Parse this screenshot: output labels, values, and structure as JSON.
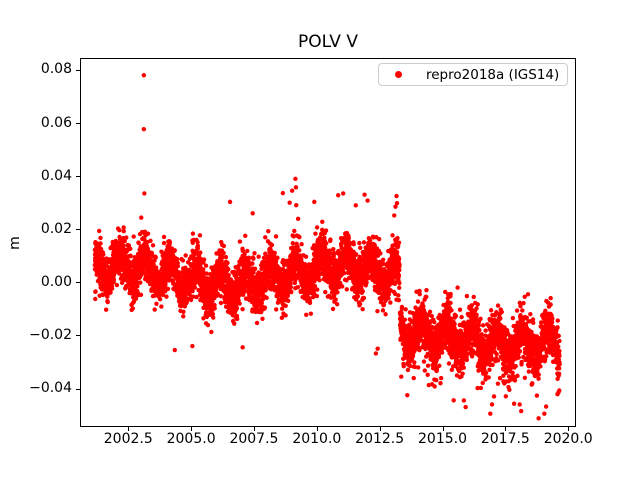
{
  "chart_data": {
    "type": "scatter",
    "title": "POLV V",
    "xlabel": "",
    "ylabel": "m",
    "legend": {
      "location": "upper right",
      "entries": [
        {
          "label": "repro2018a (IGS14)",
          "color": "#ff0000",
          "marker": "circle"
        }
      ]
    },
    "axis": {
      "xlim": [
        2000.58,
        2020.31
      ],
      "ylim": [
        -0.0545,
        0.0845
      ],
      "xticks": [
        2002.5,
        2005.0,
        2007.5,
        2010.0,
        2012.5,
        2015.0,
        2017.5,
        2020.0
      ],
      "xtick_labels": [
        "2002.5",
        "2005.0",
        "2007.5",
        "2010.0",
        "2012.5",
        "2015.0",
        "2017.5",
        "2020.0"
      ],
      "yticks": [
        -0.04,
        -0.02,
        0.0,
        0.02,
        0.04,
        0.06,
        0.08
      ],
      "ytick_labels": [
        "−0.04",
        "−0.02",
        "0.00",
        "0.02",
        "0.04",
        "0.06",
        "0.08"
      ],
      "grid": false,
      "spine_color": "#000000"
    },
    "marker": {
      "color": "#ff0000",
      "radius_px": 2.2
    },
    "description": "Daily GNSS vertical position time series for station POLV (repro2018a, IGS14); dense red scatter band near 0.00 m from 2001.2 to 2013.3, then an offset down to about -0.021 m from 2013.3 to 2019.65, with sparse large outliers.",
    "series": [
      {
        "name": "repro2018a (IGS14)",
        "color": "#ff0000",
        "sampling_step_years": 0.00274,
        "seed": 42,
        "segments": [
          {
            "t_start": 2001.17,
            "t_end": 2013.29,
            "mean": 0.0025,
            "trend_per_year": 0.0,
            "wobble": {
              "amp": 0.0035,
              "period": 9.0,
              "t_ref": 2002.0
            },
            "seasonal": {
              "amp": 0.005,
              "phase": 0.08
            },
            "noise_sd": 0.0052,
            "texture": {
              "freq": 9.3,
              "depth": 0.45
            },
            "tails": {
              "prob": 0.05,
              "mag": 0.011,
              "bias": 0.1
            }
          },
          {
            "t_start": 2013.31,
            "t_end": 2019.66,
            "mean": -0.0205,
            "trend_per_year": -0.0003,
            "wobble": {
              "amp": 0.0015,
              "period": 7.0,
              "t_ref": 2014.0
            },
            "seasonal": {
              "amp": 0.0048,
              "phase": 0.08
            },
            "noise_sd": 0.0055,
            "texture": {
              "freq": 9.3,
              "depth": 0.45
            },
            "tails": {
              "prob": 0.06,
              "mag": 0.012,
              "bias": -0.45
            }
          }
        ],
        "outliers": [
          [
            2003.12,
            0.078
          ],
          [
            2003.12,
            0.0577
          ],
          [
            2003.14,
            0.0335
          ],
          [
            2006.55,
            0.0303
          ],
          [
            2007.45,
            0.026
          ],
          [
            2008.65,
            0.0336
          ],
          [
            2008.92,
            0.03
          ],
          [
            2009.02,
            0.0345
          ],
          [
            2009.15,
            0.039
          ],
          [
            2009.17,
            0.0358
          ],
          [
            2009.9,
            0.0303
          ],
          [
            2010.85,
            0.0328
          ],
          [
            2011.05,
            0.0335
          ],
          [
            2011.55,
            0.029
          ],
          [
            2011.9,
            0.033
          ],
          [
            2012.02,
            0.0308
          ],
          [
            2013.08,
            0.0252
          ],
          [
            2013.13,
            0.0285
          ],
          [
            2013.17,
            0.0325
          ],
          [
            2013.19,
            0.0298
          ],
          [
            2004.35,
            -0.0255
          ],
          [
            2005.05,
            -0.024
          ],
          [
            2007.05,
            -0.0245
          ],
          [
            2012.35,
            -0.0268
          ],
          [
            2012.42,
            -0.025
          ],
          [
            2013.6,
            -0.0425
          ],
          [
            2014.92,
            -0.038
          ],
          [
            2015.6,
            -0.002
          ],
          [
            2015.85,
            -0.0445
          ],
          [
            2015.92,
            -0.047
          ],
          [
            2016.9,
            -0.0495
          ],
          [
            2016.97,
            -0.046
          ],
          [
            2017.05,
            -0.043
          ],
          [
            2018.07,
            -0.046
          ],
          [
            2018.13,
            -0.0485
          ],
          [
            2018.4,
            -0.0045
          ],
          [
            2019.05,
            -0.0495
          ],
          [
            2019.12,
            -0.0468
          ]
        ]
      }
    ]
  }
}
